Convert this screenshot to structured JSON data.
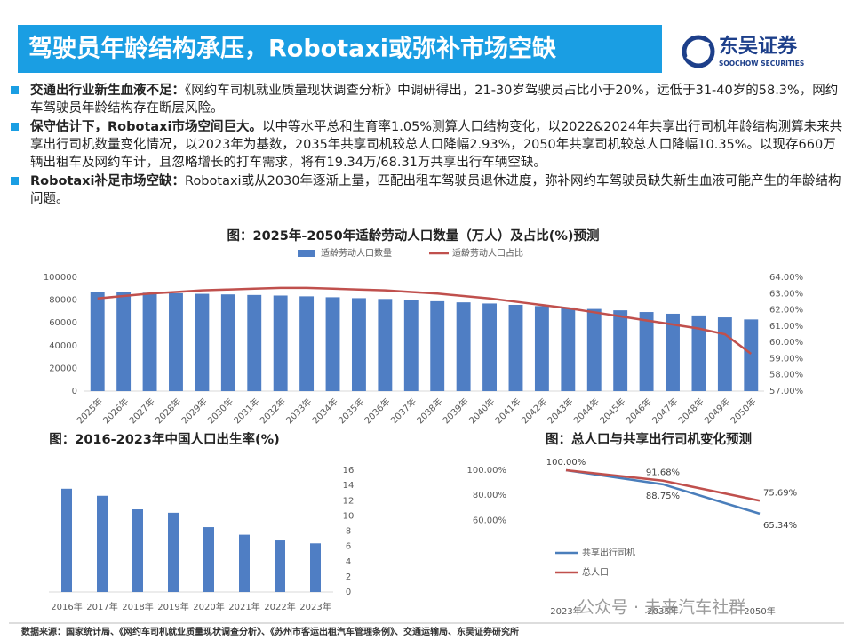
{
  "header": {
    "title": "驾驶员年龄结构承压，Robotaxi或弥补市场空缺",
    "logo_cn": "东吴证券",
    "logo_en": "SOOCHOW SECURITIES"
  },
  "bullets": [
    {
      "lead": "交通出行业新生血液不足：",
      "text": "《网约车司机就业质量现状调查分析》中调研得出，21-30岁驾驶员占比小于20%，远低于31-40岁的58.3%，网约车驾驶员年龄结构存在断层风险。"
    },
    {
      "lead": "保守估计下，Robotaxi市场空间巨大。",
      "text": "以中等水平总和生育率1.05%测算人口结构变化，以2022&2024年共享出行司机年龄结构测算未来共享出行司机数量变化情况，以2023年为基数，2035年共享司机较总人口降幅2.93%，2050年共享司机较总人口降幅10.35%。以现存660万辆出租车及网约车计，且忽略增长的打车需求，将有19.34万/68.31万共享出行车辆空缺。"
    },
    {
      "lead": "Robotaxi补足市场空缺：",
      "text": "Robotaxi或从2030年逐渐上量，匹配出租车驾驶员退休进度，弥补网约车驾驶员缺失新生血液可能产生的年龄结构问题。"
    }
  ],
  "chart_data": [
    {
      "type": "combo",
      "title": "图：2025年-2050年适龄劳动人口数量（万人）及占比(%)预测",
      "categories": [
        "2025年",
        "2026年",
        "2027年",
        "2028年",
        "2029年",
        "2030年",
        "2031年",
        "2032年",
        "2033年",
        "2034年",
        "2035年",
        "2036年",
        "2037年",
        "2038年",
        "2039年",
        "2040年",
        "2041年",
        "2042年",
        "2043年",
        "2044年",
        "2045年",
        "2046年",
        "2047年",
        "2048年",
        "2049年",
        "2050年"
      ],
      "series": [
        {
          "name": "适龄劳动人口数量",
          "color": "#4f7ec4",
          "kind": "bar",
          "values": [
            87500,
            87000,
            86500,
            86000,
            85500,
            85000,
            84500,
            84000,
            83300,
            82500,
            81700,
            81000,
            80000,
            79000,
            78000,
            77000,
            75800,
            74700,
            73500,
            72200,
            71000,
            69500,
            68000,
            66500,
            64800,
            63000
          ]
        },
        {
          "name": "适龄劳动人口占比",
          "color": "#c0504d",
          "kind": "line",
          "axis": "y2",
          "values": [
            62.7,
            62.85,
            63.0,
            63.1,
            63.2,
            63.25,
            63.3,
            63.35,
            63.35,
            63.3,
            63.25,
            63.2,
            63.1,
            63.0,
            62.85,
            62.7,
            62.5,
            62.3,
            62.1,
            61.85,
            61.6,
            61.35,
            61.1,
            60.85,
            60.5,
            59.3
          ]
        }
      ],
      "ylim": [
        0,
        100000
      ],
      "yticks": [
        0,
        20000,
        40000,
        60000,
        80000,
        100000
      ],
      "y2lim": [
        57,
        64
      ],
      "y2ticks": [
        {
          "value": 57,
          "label": "57.00%"
        },
        {
          "value": 58,
          "label": "58.00%"
        },
        {
          "value": 59,
          "label": "59.00%"
        },
        {
          "value": 60,
          "label": "60.00%"
        },
        {
          "value": 61,
          "label": "61.00%"
        },
        {
          "value": 62,
          "label": "62.00%"
        },
        {
          "value": 63,
          "label": "63.00%"
        },
        {
          "value": 64,
          "label": "64.00%"
        }
      ],
      "legend": "top",
      "grid": false
    },
    {
      "type": "bar",
      "title": "图：2016-2023年中国人口出生率(%)",
      "categories": [
        "2016年",
        "2017年",
        "2018年",
        "2019年",
        "2020年",
        "2021年",
        "2022年",
        "2023年"
      ],
      "values": [
        13.57,
        12.64,
        10.86,
        10.41,
        8.52,
        7.52,
        6.77,
        6.39
      ],
      "color": "#4f7ec4",
      "ylim": [
        0,
        16
      ],
      "yticks": [
        0,
        2,
        4,
        6,
        8,
        10,
        12,
        14,
        16
      ],
      "y_axis_side": "right",
      "grid": false
    },
    {
      "type": "line",
      "title": "图：总人口与共享出行司机变化预测",
      "categories": [
        "2023年",
        "2035年",
        "2050年"
      ],
      "series": [
        {
          "name": "共享出行司机",
          "color": "#4a7ebb",
          "values": [
            100,
            88.75,
            65.34
          ],
          "value_labels": [
            null,
            "88.75%",
            "65.34%"
          ]
        },
        {
          "name": "总人口",
          "color": "#c0504d",
          "values": [
            100,
            91.68,
            75.69
          ],
          "value_labels": [
            "100.00%",
            "91.68%",
            "75.69%"
          ]
        }
      ],
      "ylim": [
        0,
        100
      ],
      "yticks": [
        {
          "value": 60,
          "label": "60.00%"
        },
        {
          "value": 80,
          "label": "80.00%"
        },
        {
          "value": 100,
          "label": "100.00%"
        }
      ],
      "legend": "bottom-left",
      "grid": false
    }
  ],
  "source": "数据来源：国家统计局、《网约车司机就业质量现状调查分析》、《苏州市客运出租汽车管理条例》、交通运输局、东吴证券研究所",
  "watermark": "公众号 · 未来汽车社群"
}
